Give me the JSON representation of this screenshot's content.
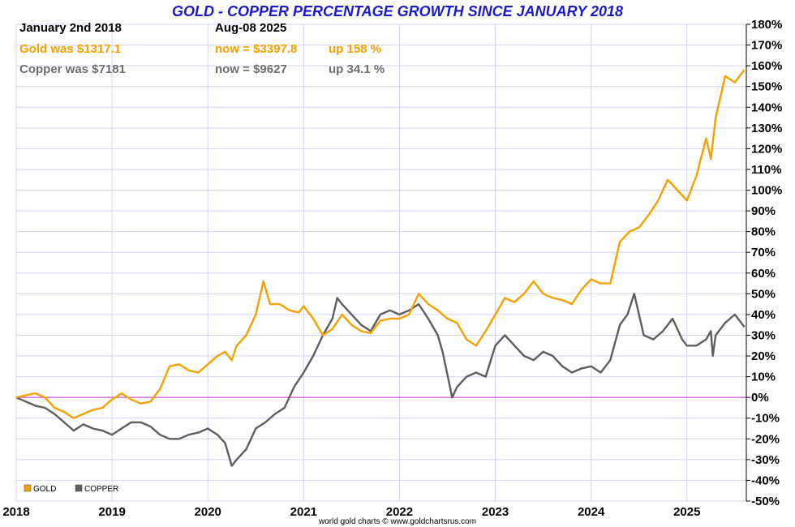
{
  "colors": {
    "gold": "#f5a100",
    "copper": "#5e5e5e",
    "zero_line": "#cc33cc",
    "grid": "#d4d4ee",
    "title": "#1a1acc"
  },
  "info": {
    "start_date": "January 2nd 2018",
    "end_date": "Aug-08  2025",
    "gold_was": "Gold was $1317.1",
    "gold_now": "now = $3397.8",
    "gold_up": "up 158 %",
    "copper_was": "Copper was $7181",
    "copper_now": "now = $9627",
    "copper_up": "up 34.1 %"
  },
  "footer": "world gold charts © www.goldchartsrus.com",
  "chart_data": {
    "type": "line",
    "title": "GOLD - COPPER PERCENTAGE GROWTH SINCE JANUARY 2018",
    "xlabel": "",
    "ylabel": "",
    "xlim": [
      2018.0,
      2025.62
    ],
    "ylim": [
      -50,
      180
    ],
    "x_ticks": [
      "2018",
      "2019",
      "2020",
      "2021",
      "2022",
      "2023",
      "2024",
      "2025"
    ],
    "y_ticks": [
      "180%",
      "170%",
      "160%",
      "150%",
      "140%",
      "130%",
      "120%",
      "110%",
      "100%",
      "90%",
      "80%",
      "70%",
      "60%",
      "50%",
      "40%",
      "30%",
      "20%",
      "10%",
      "0%",
      "-10%",
      "-20%",
      "-30%",
      "-40%",
      "-50%"
    ],
    "grid": true,
    "legend_position": "bottom-left",
    "series": [
      {
        "name": "GOLD",
        "color": "#f5a100",
        "x": [
          2018.0,
          2018.1,
          2018.2,
          2018.3,
          2018.4,
          2018.5,
          2018.6,
          2018.7,
          2018.8,
          2018.9,
          2019.0,
          2019.1,
          2019.2,
          2019.3,
          2019.4,
          2019.5,
          2019.6,
          2019.7,
          2019.8,
          2019.9,
          2020.0,
          2020.1,
          2020.18,
          2020.25,
          2020.3,
          2020.4,
          2020.5,
          2020.58,
          2020.65,
          2020.75,
          2020.85,
          2020.95,
          2021.0,
          2021.1,
          2021.2,
          2021.3,
          2021.4,
          2021.5,
          2021.6,
          2021.7,
          2021.8,
          2021.9,
          2022.0,
          2022.1,
          2022.2,
          2022.3,
          2022.4,
          2022.5,
          2022.6,
          2022.7,
          2022.8,
          2022.9,
          2023.0,
          2023.1,
          2023.2,
          2023.3,
          2023.4,
          2023.5,
          2023.6,
          2023.7,
          2023.8,
          2023.9,
          2024.0,
          2024.1,
          2024.2,
          2024.3,
          2024.4,
          2024.5,
          2024.6,
          2024.7,
          2024.8,
          2024.9,
          2025.0,
          2025.1,
          2025.2,
          2025.25,
          2025.3,
          2025.4,
          2025.5,
          2025.6
        ],
        "values": [
          0,
          1,
          2,
          0,
          -5,
          -7,
          -10,
          -8,
          -6,
          -5,
          -1,
          2,
          -1,
          -3,
          -2,
          4,
          15,
          16,
          13,
          12,
          16,
          20,
          22,
          18,
          25,
          30,
          40,
          56,
          45,
          45,
          42,
          41,
          44,
          38,
          30,
          33,
          40,
          35,
          32,
          31,
          37,
          38,
          38,
          40,
          50,
          45,
          42,
          38,
          36,
          28,
          25,
          32,
          40,
          48,
          46,
          50,
          56,
          50,
          48,
          47,
          45,
          52,
          57,
          55,
          55,
          75,
          80,
          82,
          88,
          95,
          105,
          100,
          95,
          107,
          125,
          115,
          135,
          155,
          152,
          158
        ]
      },
      {
        "name": "COPPER",
        "color": "#5e5e5e",
        "x": [
          2018.0,
          2018.1,
          2018.2,
          2018.3,
          2018.4,
          2018.5,
          2018.6,
          2018.7,
          2018.8,
          2018.9,
          2019.0,
          2019.1,
          2019.2,
          2019.3,
          2019.4,
          2019.5,
          2019.6,
          2019.7,
          2019.8,
          2019.9,
          2020.0,
          2020.1,
          2020.18,
          2020.25,
          2020.3,
          2020.4,
          2020.5,
          2020.6,
          2020.7,
          2020.8,
          2020.9,
          2021.0,
          2021.1,
          2021.2,
          2021.3,
          2021.35,
          2021.4,
          2021.5,
          2021.6,
          2021.7,
          2021.8,
          2021.9,
          2022.0,
          2022.1,
          2022.2,
          2022.3,
          2022.4,
          2022.45,
          2022.55,
          2022.6,
          2022.7,
          2022.8,
          2022.9,
          2023.0,
          2023.1,
          2023.2,
          2023.3,
          2023.4,
          2023.5,
          2023.6,
          2023.7,
          2023.8,
          2023.9,
          2024.0,
          2024.1,
          2024.2,
          2024.3,
          2024.38,
          2024.45,
          2024.55,
          2024.65,
          2024.75,
          2024.85,
          2024.95,
          2025.0,
          2025.1,
          2025.2,
          2025.25,
          2025.27,
          2025.3,
          2025.4,
          2025.5,
          2025.6
        ],
        "values": [
          0,
          -2,
          -4,
          -5,
          -8,
          -12,
          -16,
          -13,
          -15,
          -16,
          -18,
          -15,
          -12,
          -12,
          -14,
          -18,
          -20,
          -20,
          -18,
          -17,
          -15,
          -18,
          -22,
          -33,
          -30,
          -25,
          -15,
          -12,
          -8,
          -5,
          5,
          12,
          20,
          30,
          38,
          48,
          45,
          40,
          35,
          32,
          40,
          42,
          40,
          42,
          45,
          38,
          30,
          22,
          0,
          5,
          10,
          12,
          10,
          25,
          30,
          25,
          20,
          18,
          22,
          20,
          15,
          12,
          14,
          15,
          12,
          18,
          35,
          40,
          50,
          30,
          28,
          32,
          38,
          28,
          25,
          25,
          28,
          32,
          20,
          30,
          36,
          40,
          34
        ]
      }
    ]
  }
}
